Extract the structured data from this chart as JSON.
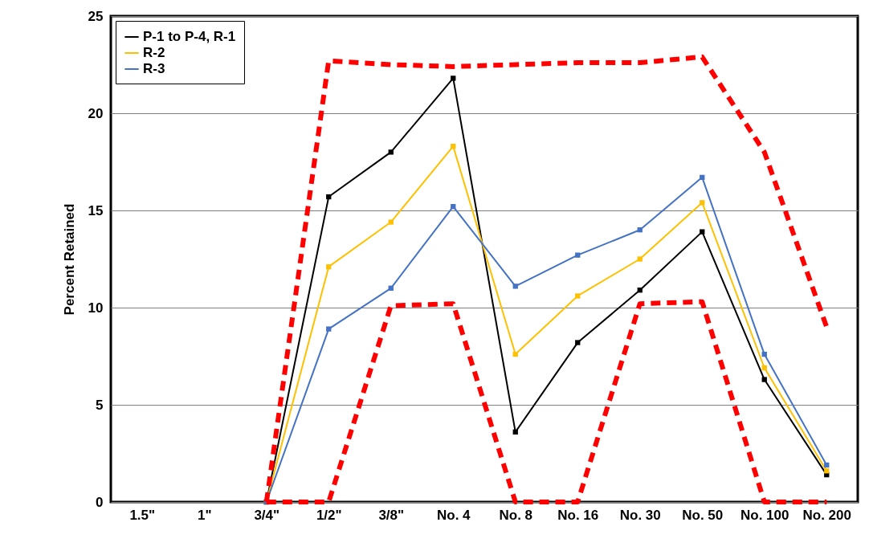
{
  "chart_data": {
    "type": "line",
    "ylabel": "Percent Retained",
    "categories": [
      "1.5\"",
      "1\"",
      "3/4\"",
      "1/2\"",
      "3/8\"",
      "No. 4",
      "No. 8",
      "No. 16",
      "No. 30",
      "No. 50",
      "No. 100",
      "No. 200"
    ],
    "series": [
      {
        "name": "P-1 to P-4, R-1",
        "color": "#000000",
        "values": [
          null,
          null,
          0,
          15.7,
          18.0,
          21.8,
          3.6,
          8.2,
          10.9,
          13.9,
          6.3,
          1.4
        ]
      },
      {
        "name": "R-2",
        "color": "#ffc000",
        "values": [
          null,
          null,
          0,
          12.1,
          14.4,
          18.3,
          7.6,
          10.6,
          12.5,
          15.4,
          6.9,
          1.6
        ]
      },
      {
        "name": "R-3",
        "color": "#4472c4",
        "values": [
          null,
          null,
          0,
          8.9,
          11.0,
          15.2,
          11.1,
          12.7,
          14.0,
          16.7,
          7.6,
          1.9
        ]
      },
      {
        "color": "#ff0000",
        "line_style": "dashed",
        "marker": "none",
        "values": [
          null,
          null,
          0,
          22.7,
          22.5,
          22.4,
          22.5,
          22.6,
          22.6,
          22.9,
          18,
          9
        ]
      },
      {
        "color": "#ff0000",
        "line_style": "dashed",
        "marker": "none",
        "values": [
          null,
          null,
          0,
          0,
          10.1,
          10.2,
          0,
          0,
          10.2,
          10.3,
          0,
          0
        ]
      }
    ],
    "ylim": [
      0,
      25
    ],
    "yticks": [
      0,
      5,
      10,
      15,
      20,
      25
    ],
    "grid": "y",
    "legend": "top left",
    "marker": "square",
    "line_style": "solid"
  }
}
